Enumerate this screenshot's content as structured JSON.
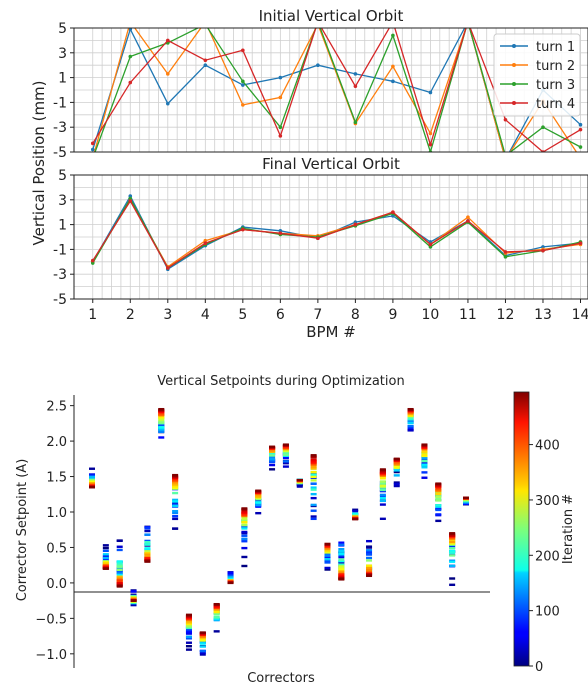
{
  "chart_data": [
    {
      "type": "line",
      "title": "Initial Vertical Orbit",
      "ylabel": "Vertical Position (mm)",
      "x": [
        1,
        2,
        3,
        4,
        5,
        6,
        7,
        8,
        9,
        10,
        11,
        12,
        13,
        14
      ],
      "ylim": [
        -5,
        5
      ],
      "yticks": [
        "5",
        "3",
        "1",
        "-1",
        "-3",
        "-5"
      ],
      "grid": true,
      "legend": "top-right",
      "series": [
        {
          "name": "turn 1",
          "color": "#1f77b4",
          "values": [
            -4.8,
            4.9,
            -1.1,
            2.0,
            0.4,
            1.0,
            2.0,
            1.3,
            0.7,
            -0.2,
            5.5,
            -5.6,
            0.0,
            -2.8
          ]
        },
        {
          "name": "turn 2",
          "color": "#ff7f0e",
          "values": [
            -5.5,
            5.5,
            1.3,
            5.5,
            -1.2,
            -0.6,
            5.3,
            -2.7,
            1.9,
            -3.5,
            5.5,
            -5.6,
            -0.9,
            -5.5
          ]
        },
        {
          "name": "turn 3",
          "color": "#2ca02c",
          "values": [
            -5.5,
            2.7,
            3.8,
            5.3,
            0.7,
            -3.0,
            5.5,
            -2.6,
            4.4,
            -5.0,
            5.5,
            -5.3,
            -3.0,
            -4.6
          ]
        },
        {
          "name": "turn 4",
          "color": "#d62728",
          "values": [
            -4.3,
            0.6,
            4.0,
            2.4,
            3.2,
            -3.7,
            5.5,
            0.3,
            5.5,
            -4.4,
            5.5,
            -2.4,
            -5.0,
            -3.2
          ]
        }
      ]
    },
    {
      "type": "line",
      "title": "Final Vertical Orbit",
      "xlabel": "BPM #",
      "x": [
        1,
        2,
        3,
        4,
        5,
        6,
        7,
        8,
        9,
        10,
        11,
        12,
        13,
        14
      ],
      "xticks": [
        "1",
        "2",
        "3",
        "4",
        "5",
        "6",
        "7",
        "8",
        "9",
        "10",
        "11",
        "12",
        "13",
        "14"
      ],
      "ylim": [
        -5,
        5
      ],
      "yticks": [
        "5",
        "3",
        "1",
        "-1",
        "-3",
        "-5"
      ],
      "grid": true,
      "series": [
        {
          "name": "turn 1",
          "color": "#1f77b4",
          "values": [
            -2.0,
            3.3,
            -2.6,
            -0.7,
            0.8,
            0.5,
            -0.1,
            1.2,
            1.7,
            -0.4,
            1.3,
            -1.5,
            -0.8,
            -0.5
          ]
        },
        {
          "name": "turn 2",
          "color": "#ff7f0e",
          "values": [
            -2.0,
            3.0,
            -2.4,
            -0.3,
            0.6,
            0.3,
            0.1,
            1.0,
            2.0,
            -0.6,
            1.6,
            -1.3,
            -1.0,
            -0.6
          ]
        },
        {
          "name": "turn 3",
          "color": "#2ca02c",
          "values": [
            -2.1,
            3.1,
            -2.5,
            -0.6,
            0.7,
            0.2,
            0.0,
            0.9,
            1.9,
            -0.8,
            1.2,
            -1.6,
            -1.1,
            -0.4
          ]
        },
        {
          "name": "turn 4",
          "color": "#d62728",
          "values": [
            -1.9,
            2.9,
            -2.5,
            -0.5,
            0.6,
            0.3,
            -0.1,
            1.0,
            2.0,
            -0.6,
            1.3,
            -1.2,
            -1.1,
            -0.5
          ]
        }
      ]
    },
    {
      "type": "scatter",
      "title": "Vertical Setpoints during Optimization",
      "xlabel": "Correctors",
      "ylabel": "Corrector Setpoint (A)",
      "ylim": [
        -1.2,
        2.65
      ],
      "yticks": [
        "2.5",
        "2.0",
        "1.5",
        "1.0",
        "0.5",
        "0.0",
        "−0.5",
        "−1.0"
      ],
      "colorbar": {
        "label": "Iteration #",
        "range": [
          0,
          495
        ],
        "ticks": [
          "0",
          "100",
          "200",
          "300",
          "400"
        ],
        "colormap": "jet"
      },
      "correctors": [
        {
          "start": 1.5,
          "end": 1.35,
          "spread": 0.15
        },
        {
          "start": 0.4,
          "end": 0.2,
          "spread": 0.2
        },
        {
          "start": 0.45,
          "end": -0.05,
          "spread": 0.25
        },
        {
          "start": -0.2,
          "end": -0.25,
          "spread": 0.12
        },
        {
          "start": 0.65,
          "end": 0.3,
          "spread": 0.3
        },
        {
          "start": 2.05,
          "end": 2.45,
          "spread": 0.12
        },
        {
          "start": 0.95,
          "end": 1.52,
          "spread": 0.28
        },
        {
          "start": -0.85,
          "end": -0.45,
          "spread": 0.15
        },
        {
          "start": -0.95,
          "end": -0.7,
          "spread": 0.15
        },
        {
          "start": -0.55,
          "end": -0.3,
          "spread": 0.2
        },
        {
          "start": 0.1,
          "end": 0.0,
          "spread": 0.08
        },
        {
          "start": 0.5,
          "end": 1.05,
          "spread": 0.28
        },
        {
          "start": 1.05,
          "end": 1.3,
          "spread": 0.18
        },
        {
          "start": 1.7,
          "end": 1.92,
          "spread": 0.12
        },
        {
          "start": 1.7,
          "end": 1.95,
          "spread": 0.12
        },
        {
          "start": 1.4,
          "end": 1.45,
          "spread": 0.06
        },
        {
          "start": 1.05,
          "end": 1.8,
          "spread": 0.5
        },
        {
          "start": 0.3,
          "end": 0.55,
          "spread": 0.15
        },
        {
          "start": 0.4,
          "end": 0.05,
          "spread": 0.4
        },
        {
          "start": 1.0,
          "end": 0.9,
          "spread": 0.08
        },
        {
          "start": 0.45,
          "end": 0.1,
          "spread": 0.25
        },
        {
          "start": 1.1,
          "end": 1.6,
          "spread": 0.28
        },
        {
          "start": 1.5,
          "end": 1.75,
          "spread": 0.18
        },
        {
          "start": 2.2,
          "end": 2.45,
          "spread": 0.12
        },
        {
          "start": 1.55,
          "end": 1.95,
          "spread": 0.2
        },
        {
          "start": 1.0,
          "end": 1.4,
          "spread": 0.25
        },
        {
          "start": 0.2,
          "end": 0.7,
          "spread": 0.3
        },
        {
          "start": 1.15,
          "end": 1.2,
          "spread": 0.06
        }
      ]
    }
  ]
}
